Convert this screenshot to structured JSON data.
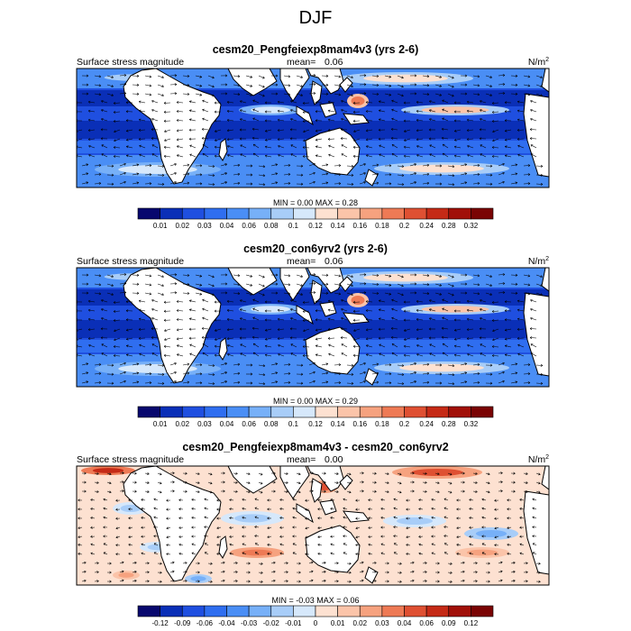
{
  "figure": {
    "title": "DJF",
    "unit_base": "N/m",
    "unit_exp": "2",
    "colors": {
      "land": "#ffffff",
      "coast": "#000000"
    }
  },
  "chart_data": [
    {
      "type": "heatmap",
      "title": "cesm20_Pengfeiexp8mam4v3 (yrs 2-6)",
      "left_label": "Surface stress magnitude",
      "mean_text": "mean=",
      "mean_value": "0.06",
      "stats_text": "MIN =  0.00 MAX =   0.28",
      "min": 0.0,
      "max": 0.28,
      "mean": 0.06,
      "colorbar": {
        "labels": [
          "0.01",
          "0.02",
          "0.03",
          "0.04",
          "0.06",
          "0.08",
          "0.1",
          "0.12",
          "0.14",
          "0.16",
          "0.18",
          "0.2",
          "0.24",
          "0.28",
          "0.32"
        ],
        "colors": [
          "#08086e",
          "#0a2fb7",
          "#1f4fe0",
          "#2f6ef0",
          "#4a8ef5",
          "#77b0f8",
          "#a8cdf8",
          "#d6e8fb",
          "#fde1d1",
          "#fbc4a9",
          "#f6a27f",
          "#ee7a55",
          "#df5032",
          "#c52a16",
          "#a11009",
          "#7a0404"
        ]
      }
    },
    {
      "type": "heatmap",
      "title": "cesm20_con6yrv2 (yrs 2-6)",
      "left_label": "Surface stress magnitude",
      "mean_text": "mean=",
      "mean_value": "0.06",
      "stats_text": "MIN =  0.00 MAX =   0.29",
      "min": 0.0,
      "max": 0.29,
      "mean": 0.06,
      "colorbar": {
        "labels": [
          "0.01",
          "0.02",
          "0.03",
          "0.04",
          "0.06",
          "0.08",
          "0.1",
          "0.12",
          "0.14",
          "0.16",
          "0.18",
          "0.2",
          "0.24",
          "0.28",
          "0.32"
        ],
        "colors": [
          "#08086e",
          "#0a2fb7",
          "#1f4fe0",
          "#2f6ef0",
          "#4a8ef5",
          "#77b0f8",
          "#a8cdf8",
          "#d6e8fb",
          "#fde1d1",
          "#fbc4a9",
          "#f6a27f",
          "#ee7a55",
          "#df5032",
          "#c52a16",
          "#a11009",
          "#7a0404"
        ]
      }
    },
    {
      "type": "heatmap",
      "title": "cesm20_Pengfeiexp8mam4v3 - cesm20_con6yrv2",
      "left_label": "Surface stress magnitude",
      "mean_text": "mean=",
      "mean_value": "0.00",
      "stats_text": "MIN = -0.03 MAX =   0.06",
      "min": -0.03,
      "max": 0.06,
      "mean": 0.0,
      "colorbar": {
        "labels": [
          "-0.12",
          "-0.09",
          "-0.06",
          "-0.04",
          "-0.03",
          "-0.02",
          "-0.01",
          "0",
          "0.01",
          "0.02",
          "0.03",
          "0.04",
          "0.06",
          "0.09",
          "0.12"
        ],
        "colors": [
          "#08086e",
          "#0a2fb7",
          "#1f4fe0",
          "#2f6ef0",
          "#4a8ef5",
          "#77b0f8",
          "#a8cdf8",
          "#d6e8fb",
          "#fde1d1",
          "#fbc4a9",
          "#f6a27f",
          "#ee7a55",
          "#df5032",
          "#c52a16",
          "#a11009",
          "#7a0404"
        ]
      }
    }
  ]
}
